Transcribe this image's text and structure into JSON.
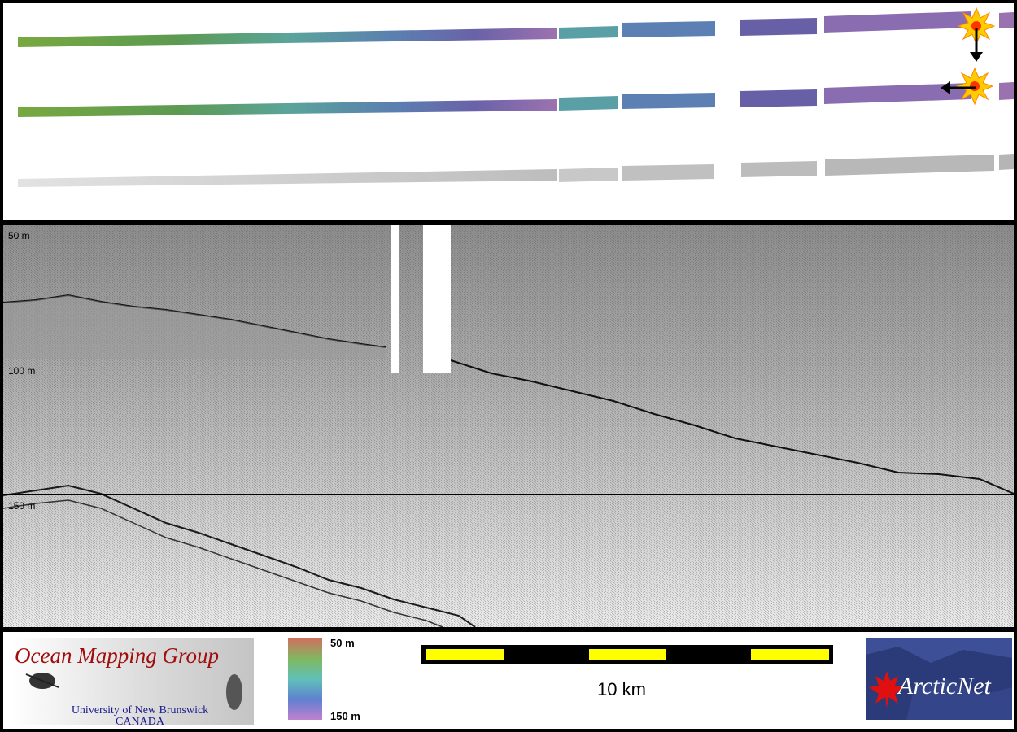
{
  "profile": {
    "depth_labels": [
      "50 m",
      "100 m",
      "150 m"
    ]
  },
  "legend": {
    "colorbar_top": "50 m",
    "colorbar_bottom": "150 m",
    "scale_text": "10 km"
  },
  "logos": {
    "omg_title": "Ocean Mapping Group",
    "omg_sub_line1": "University of New Brunswick",
    "omg_sub_line2": "CANADA",
    "arctic_text": "ArcticNet"
  },
  "colors": {
    "scale_yellow": "#ffff00",
    "omg_red": "#a10d0d",
    "arctic_blue": "#2b3a78"
  }
}
